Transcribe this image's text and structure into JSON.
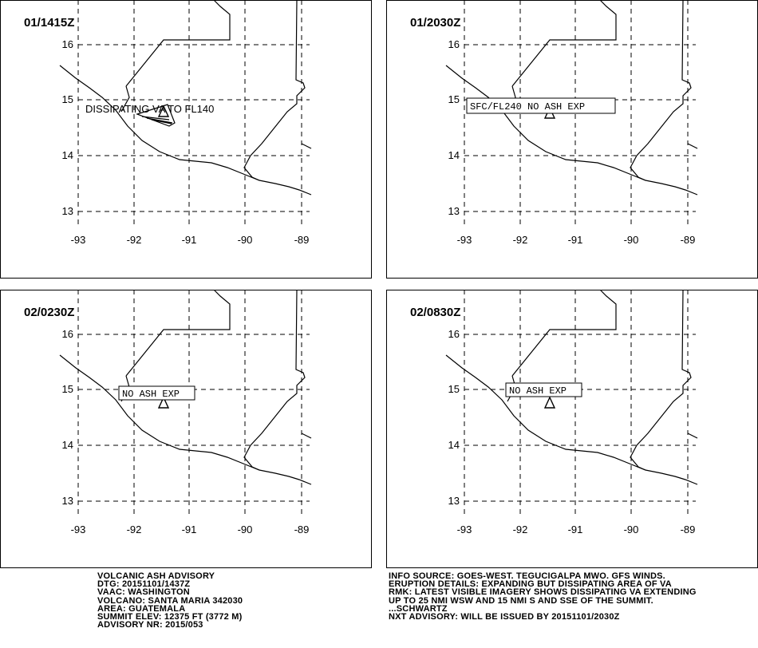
{
  "axes": {
    "lon_ticks": [
      "-93",
      "-92",
      "-91",
      "-90",
      "-89"
    ],
    "lat_ticks": [
      "16",
      "15",
      "14",
      "13"
    ],
    "lon_range": [
      -93,
      -89
    ],
    "lat_range": [
      13,
      16
    ]
  },
  "panels": [
    {
      "time": "01/1415Z",
      "annotation": "DISSIPATING VA TO FL140",
      "annotation_style": "plain",
      "ash_area": true
    },
    {
      "time": "01/2030Z",
      "annotation": "SFC/FL240 NO ASH EXP",
      "annotation_style": "boxed",
      "ash_area": false
    },
    {
      "time": "02/0230Z",
      "annotation": "NO ASH EXP",
      "annotation_style": "boxed",
      "ash_area": false
    },
    {
      "time": "02/0830Z",
      "annotation": "NO ASH EXP",
      "annotation_style": "boxed",
      "ash_area": false
    }
  ],
  "advisory_left": [
    "VOLCANIC ASH ADVISORY",
    "DTG: 20151101/1437Z",
    "VAAC: WASHINGTON",
    "VOLCANO: SANTA MARIA 342030",
    "AREA: GUATEMALA",
    "SUMMIT ELEV: 12375 FT (3772 M)",
    "ADVISORY NR: 2015/053"
  ],
  "advisory_right": [
    "INFO SOURCE: GOES-WEST. TEGUCIGALPA MWO. GFS WINDS.",
    "ERUPTION DETAILS: EXPANDING BUT DISSIPATING AREA OF VA",
    "RMK: LATEST VISIBLE IMAGERY SHOWS DISSIPATING VA EXTENDING",
    "UP TO 25 NMI WSW AND 15 NMI S AND SSE OF THE SUMMIT.",
    "...SCHWARTZ",
    "NXT ADVISORY: WILL BE ISSUED BY 20151101/2030Z"
  ],
  "colors": {
    "background": "#ffffff",
    "ink": "#000000"
  }
}
